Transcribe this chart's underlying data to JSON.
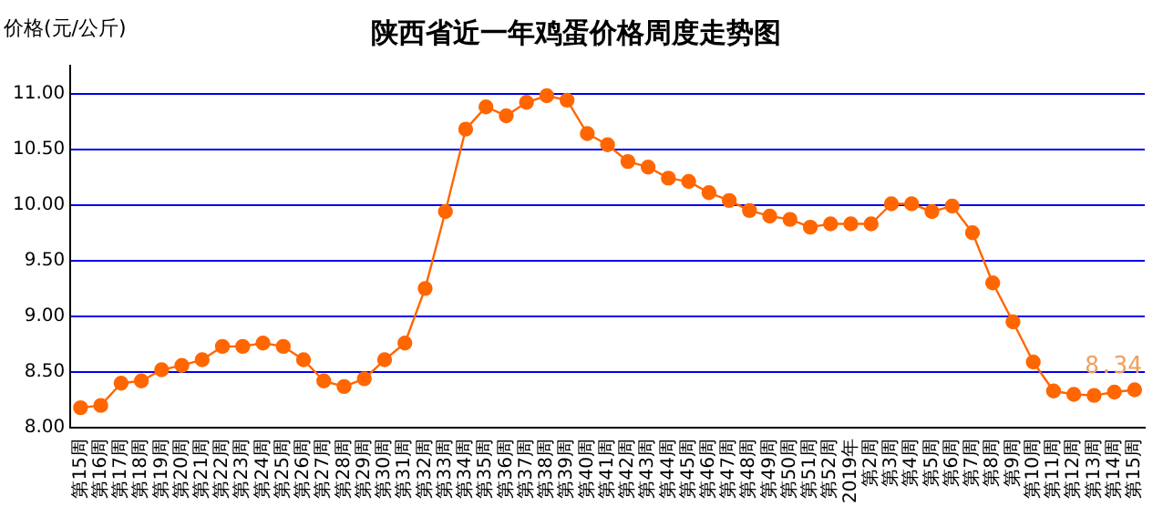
{
  "chart_data": {
    "type": "line",
    "title": "陕西省近一年鸡蛋价格周度走势图",
    "ylabel": "价格(元/公斤)",
    "categories": [
      "第15周",
      "第16周",
      "第17周",
      "第18周",
      "第19周",
      "第20周",
      "第21周",
      "第22周",
      "第23周",
      "第24周",
      "第25周",
      "第26周",
      "第27周",
      "第28周",
      "第29周",
      "第30周",
      "第31周",
      "第32周",
      "第33周",
      "第34周",
      "第35周",
      "第36周",
      "第37周",
      "第38周",
      "第39周",
      "第40周",
      "第41周",
      "第42周",
      "第43周",
      "第44周",
      "第45周",
      "第46周",
      "第47周",
      "第48周",
      "第49周",
      "第50周",
      "第51周",
      "第52周",
      "2019年",
      "第2周",
      "第3周",
      "第4周",
      "第5周",
      "第6周",
      "第7周",
      "第8周",
      "第9周",
      "第10周",
      "第11周",
      "第12周",
      "第13周",
      "第14周",
      "第15周"
    ],
    "series": [
      {
        "color": "#ff6600",
        "values": [
          8.18,
          8.2,
          8.4,
          8.42,
          8.52,
          8.56,
          8.61,
          8.73,
          8.73,
          8.76,
          8.73,
          8.61,
          8.42,
          8.37,
          8.44,
          8.61,
          8.76,
          9.25,
          9.94,
          10.68,
          10.88,
          10.8,
          10.92,
          10.98,
          10.94,
          10.64,
          10.54,
          10.39,
          10.34,
          10.24,
          10.21,
          10.11,
          10.04,
          9.95,
          9.9,
          9.87,
          9.8,
          9.83,
          9.83,
          9.83,
          10.01,
          10.01,
          9.94,
          9.99,
          9.75,
          9.3,
          8.95,
          8.59,
          8.33,
          8.3,
          8.29,
          8.32,
          8.34
        ],
        "value_labels": [
          null,
          null,
          null,
          null,
          null,
          null,
          null,
          null,
          null,
          null,
          null,
          null,
          null,
          null,
          null,
          null,
          null,
          null,
          null,
          null,
          null,
          null,
          null,
          null,
          null,
          null,
          null,
          null,
          null,
          null,
          null,
          null,
          null,
          null,
          null,
          null,
          null,
          null,
          null,
          null,
          null,
          null,
          null,
          null,
          null,
          null,
          null,
          null,
          null,
          null,
          null,
          null,
          "8.34"
        ]
      }
    ],
    "ylim": [
      8,
      11.25
    ],
    "yticks": [
      {
        "value": 8,
        "label": "8.00"
      },
      {
        "value": 8.5,
        "label": "8.50"
      },
      {
        "value": 9,
        "label": "9.00"
      },
      {
        "value": 9.5,
        "label": "9.50"
      },
      {
        "value": 10,
        "label": "10.00"
      },
      {
        "value": 10.5,
        "label": "10.50"
      },
      {
        "value": 11,
        "label": "11.00"
      }
    ],
    "grid": "y",
    "legend": false,
    "marker": "circle",
    "line_style": "solid"
  }
}
